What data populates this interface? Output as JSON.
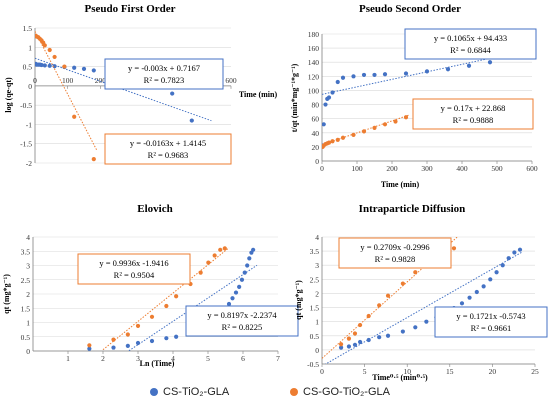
{
  "colors": {
    "blue": "#4472C4",
    "orange": "#ED7D31",
    "axis": "#7f7f7f",
    "grid": "#d9d9d9"
  },
  "legend": [
    {
      "name": "CS-TiO₂-GLA",
      "color": "#4472C4"
    },
    {
      "name": "CS-GO-TiO₂-GLA",
      "color": "#ED7D31"
    }
  ],
  "chart_data": [
    {
      "id": "pfo",
      "type": "scatter",
      "title": "Pseudo First Order",
      "xlabel": "Time (min)",
      "ylabel": "log (qe-qt)",
      "xlim": [
        0,
        600
      ],
      "ylim": [
        -2,
        1.5
      ],
      "xticks": [
        0,
        100,
        200,
        300,
        400,
        500,
        600
      ],
      "yticks": [
        -2,
        -1.5,
        -1,
        -0.5,
        0,
        0.5,
        1,
        1.5
      ],
      "ytick_labels": [
        "-2",
        "-1.5",
        "-1",
        "-0.5",
        "0",
        "0.5",
        "1",
        "1.5"
      ],
      "series": [
        {
          "color": "#4472C4",
          "x": [
            2,
            5,
            10,
            15,
            20,
            30,
            45,
            60,
            90,
            120,
            150,
            180,
            240,
            300,
            360,
            420,
            480,
            540
          ],
          "y": [
            0.57,
            0.55,
            0.55,
            0.55,
            0.54,
            0.53,
            0.52,
            0.51,
            0.49,
            0.47,
            0.44,
            0.4,
            0.33,
            0.24,
            0.1,
            -0.2,
            -0.9,
            -1.7
          ],
          "fit": {
            "slope": -0.003,
            "intercept": 0.7167,
            "x_range": [
              0,
              540
            ]
          }
        },
        {
          "color": "#ED7D31",
          "x": [
            2,
            5,
            10,
            15,
            20,
            25,
            30,
            45,
            60,
            90,
            120,
            180
          ],
          "y": [
            1.3,
            1.28,
            1.26,
            1.22,
            1.18,
            1.12,
            1.05,
            0.93,
            0.75,
            0.5,
            -0.8,
            -1.9
          ],
          "fit": {
            "slope": -0.0163,
            "intercept": 1.4145,
            "x_range": [
              0,
              190
            ]
          }
        }
      ],
      "annotations": [
        {
          "line1": "y = -0.003x + 0.7167",
          "line2": "R² = 0.7823",
          "color": "#4472C4"
        },
        {
          "line1": "y = -0.0163x + 1.4145",
          "line2": "R² = 0.9683",
          "color": "#ED7D31"
        }
      ]
    },
    {
      "id": "pso",
      "type": "scatter",
      "title": "Pseudo Second Order",
      "xlabel": "Time (min)",
      "ylabel": "t/qt (min*mg⁻¹*g⁻¹)",
      "xlim": [
        0,
        600
      ],
      "ylim": [
        0,
        180
      ],
      "xticks": [
        0,
        100,
        200,
        300,
        400,
        500,
        600
      ],
      "yticks": [
        0,
        20,
        40,
        60,
        80,
        100,
        120,
        140,
        160,
        180
      ],
      "ytick_labels": [
        "0",
        "20",
        "40",
        "60",
        "80",
        "100",
        "120",
        "140",
        "160",
        "180"
      ],
      "series": [
        {
          "color": "#4472C4",
          "x": [
            2,
            5,
            10,
            15,
            20,
            30,
            45,
            60,
            90,
            120,
            150,
            180,
            240,
            300,
            360,
            420,
            480,
            540
          ],
          "y": [
            22,
            52,
            80,
            88,
            90,
            97,
            112,
            118,
            120,
            122,
            122,
            123,
            124,
            127,
            130,
            135,
            140,
            153
          ],
          "fit": {
            "slope": 0.1065,
            "intercept": 94.433,
            "x_range": [
              0,
              540
            ]
          }
        },
        {
          "color": "#ED7D31",
          "x": [
            2,
            5,
            10,
            15,
            20,
            30,
            45,
            60,
            90,
            120,
            150,
            180,
            210,
            240
          ],
          "y": [
            20,
            22,
            24,
            25,
            26,
            28,
            30,
            33,
            37,
            42,
            47,
            52,
            56,
            62
          ],
          "fit": {
            "slope": 0.17,
            "intercept": 22.868,
            "x_range": [
              0,
              250
            ]
          }
        }
      ],
      "annotations": [
        {
          "line1": "y = 0.1065x + 94.433",
          "line2": "R² = 0.6844",
          "color": "#4472C4"
        },
        {
          "line1": "y = 0.17x + 22.868",
          "line2": "R² = 0.9888",
          "color": "#ED7D31"
        }
      ]
    },
    {
      "id": "elovich",
      "type": "scatter",
      "title": "Elovich",
      "xlabel": "Ln (Time)",
      "ylabel": "qt (mg*g⁻¹)",
      "xlim": [
        0,
        7
      ],
      "ylim": [
        0,
        4
      ],
      "xticks": [
        1,
        2,
        3,
        4,
        5,
        6,
        7
      ],
      "yticks": [
        0,
        0.5,
        1,
        1.5,
        2,
        2.5,
        3,
        3.5,
        4
      ],
      "ytick_labels": [
        "0",
        "0.5",
        "1",
        "1.5",
        "2",
        "2.5",
        "3",
        "3.5",
        "4"
      ],
      "series": [
        {
          "color": "#4472C4",
          "x": [
            1.61,
            2.3,
            2.71,
            3.0,
            3.4,
            3.81,
            4.09,
            4.5,
            4.79,
            5.01,
            5.19,
            5.35,
            5.48,
            5.6,
            5.7,
            5.8,
            5.89,
            5.97,
            6.05,
            6.12,
            6.18,
            6.24,
            6.29
          ],
          "y": [
            0.08,
            0.12,
            0.18,
            0.28,
            0.35,
            0.45,
            0.5,
            0.65,
            0.8,
            1.0,
            1.15,
            1.3,
            1.48,
            1.65,
            1.85,
            2.05,
            2.25,
            2.5,
            2.75,
            3.0,
            3.25,
            3.45,
            3.55
          ],
          "fit": {
            "slope": 0.8197,
            "intercept": -2.2374,
            "x_range": [
              1.6,
              6.4
            ]
          }
        },
        {
          "color": "#ED7D31",
          "x": [
            1.61,
            2.3,
            2.71,
            3.0,
            3.4,
            3.81,
            4.09,
            4.5,
            4.79,
            5.01,
            5.19,
            5.35,
            5.48
          ],
          "y": [
            0.2,
            0.4,
            0.58,
            0.88,
            1.2,
            1.58,
            1.92,
            2.35,
            2.75,
            3.1,
            3.35,
            3.55,
            3.6
          ],
          "fit": {
            "slope": 0.9936,
            "intercept": -1.9416,
            "x_range": [
              2.0,
              5.6
            ]
          }
        }
      ],
      "annotations": [
        {
          "line1": "y = 0.9936x -1.9416",
          "line2": "R² = 0.9504",
          "color": "#ED7D31"
        },
        {
          "line1": "y = 0.8197x -2.2374",
          "line2": "R² = 0.8225",
          "color": "#4472C4"
        }
      ]
    },
    {
      "id": "ipd",
      "type": "scatter",
      "title": "Intraparticle Diffusion",
      "xlabel": "Time⁰·⁵ (min⁰·⁵)",
      "ylabel": "qt (mg*g⁻¹)",
      "xlim": [
        0,
        25
      ],
      "ylim": [
        -0.5,
        4
      ],
      "xticks": [
        0,
        5,
        10,
        15,
        20,
        25
      ],
      "yticks": [
        -0.5,
        0,
        0.5,
        1,
        1.5,
        2,
        2.5,
        3,
        3.5,
        4
      ],
      "ytick_labels": [
        "-0.5",
        "0",
        "0.5",
        "1",
        "1.5",
        "2",
        "2.5",
        "3",
        "3.5",
        "4"
      ],
      "series": [
        {
          "color": "#4472C4",
          "x": [
            2.24,
            3.16,
            3.87,
            4.47,
            5.48,
            6.71,
            7.75,
            9.49,
            10.95,
            12.25,
            13.42,
            14.49,
            15.49,
            16.43,
            17.32,
            18.17,
            18.97,
            19.75,
            20.49,
            21.21,
            21.91,
            22.58,
            23.24
          ],
          "y": [
            0.08,
            0.12,
            0.18,
            0.28,
            0.35,
            0.45,
            0.5,
            0.65,
            0.8,
            1.0,
            1.15,
            1.3,
            1.48,
            1.65,
            1.85,
            2.05,
            2.25,
            2.5,
            2.75,
            3.0,
            3.25,
            3.45,
            3.55
          ],
          "fit": {
            "slope": 0.1721,
            "intercept": -0.5743,
            "x_range": [
              0,
              23.5
            ]
          }
        },
        {
          "color": "#ED7D31",
          "x": [
            2.24,
            3.16,
            3.87,
            4.47,
            5.48,
            6.71,
            7.75,
            9.49,
            10.95,
            12.25,
            13.42,
            14.49,
            15.49
          ],
          "y": [
            0.2,
            0.4,
            0.58,
            0.88,
            1.2,
            1.58,
            1.92,
            2.35,
            2.75,
            3.1,
            3.35,
            3.55,
            3.6
          ],
          "fit": {
            "slope": 0.2709,
            "intercept": -0.2996,
            "x_range": [
              0,
              16
            ]
          }
        }
      ],
      "annotations": [
        {
          "line1": "y = 0.2709x -0.2996",
          "line2": "R² = 0.9828",
          "color": "#ED7D31"
        },
        {
          "line1": "y = 0.1721x -0.5743",
          "line2": "R² = 0.9661",
          "color": "#4472C4"
        }
      ]
    }
  ]
}
